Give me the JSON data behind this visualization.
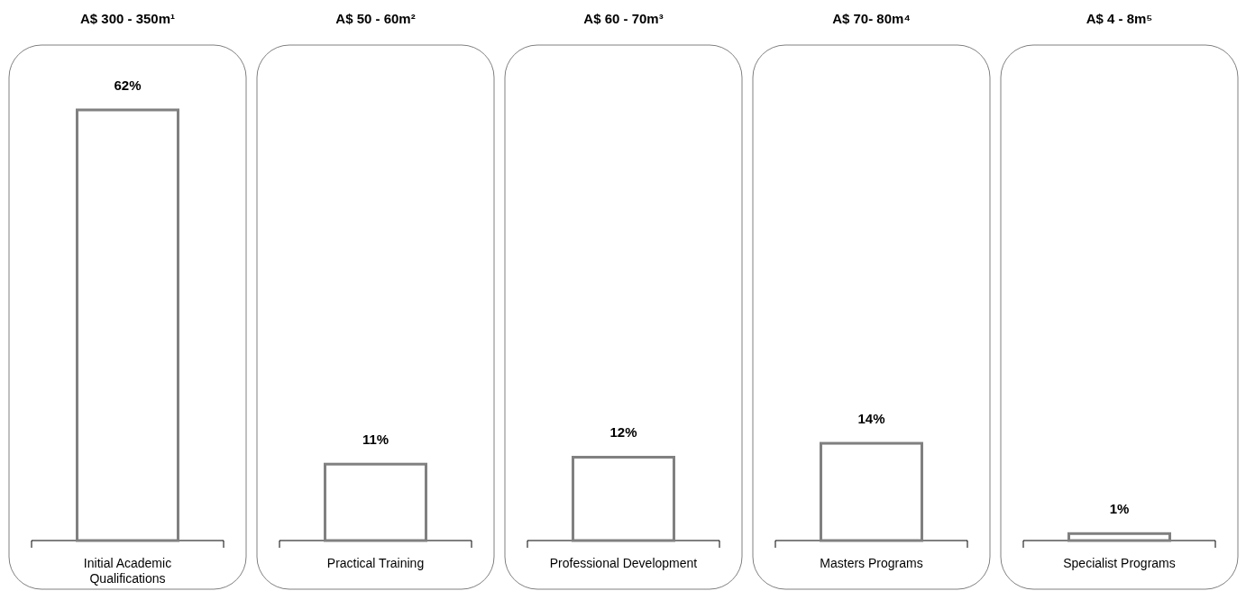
{
  "chart_data": {
    "type": "bar",
    "categories": [
      "Initial Academic Qualifications",
      "Practical Training",
      "Professional Development",
      "Masters Programs",
      "Specialist Programs"
    ],
    "values": [
      62,
      11,
      12,
      14,
      1
    ],
    "value_labels": [
      "62%",
      "11%",
      "12%",
      "14%",
      "1%"
    ],
    "color": "#808080",
    "annotations": [
      "A$ 300 - 350m¹",
      "A$ 50 - 60m²",
      "A$ 60 - 70m³",
      "A$ 70- 80m⁴",
      "A$ 4 - 8m⁵"
    ]
  }
}
